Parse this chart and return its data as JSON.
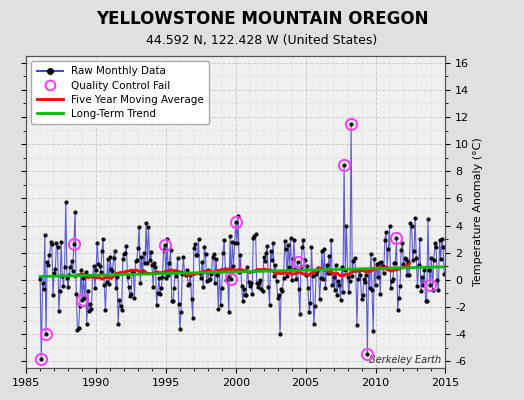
{
  "title": "YELLOWSTONE MOUNTAIN OREGON",
  "subtitle": "44.592 N, 122.428 W (United States)",
  "ylabel_right": "Temperature Anomaly (°C)",
  "attribution": "Berkeley Earth",
  "xlim": [
    1985,
    2015
  ],
  "ylim": [
    -6.5,
    16.5
  ],
  "yticks": [
    -6,
    -4,
    -2,
    0,
    2,
    4,
    6,
    8,
    10,
    12,
    14,
    16
  ],
  "xticks": [
    1985,
    1990,
    1995,
    2000,
    2005,
    2010,
    2015
  ],
  "fig_bg_color": "#e0e0e0",
  "plot_bg_color": "#f0f0f0",
  "grid_color": "#cccccc",
  "raw_line_color": "#4444cc",
  "raw_dot_color": "#000000",
  "qc_fail_color": "#ff44ff",
  "moving_avg_color": "#ff0000",
  "trend_color": "#00bb00",
  "legend_labels": [
    "Raw Monthly Data",
    "Quality Control Fail",
    "Five Year Moving Average",
    "Long-Term Trend"
  ],
  "title_fontsize": 12,
  "subtitle_fontsize": 9,
  "tick_fontsize": 8,
  "ylabel_fontsize": 8
}
